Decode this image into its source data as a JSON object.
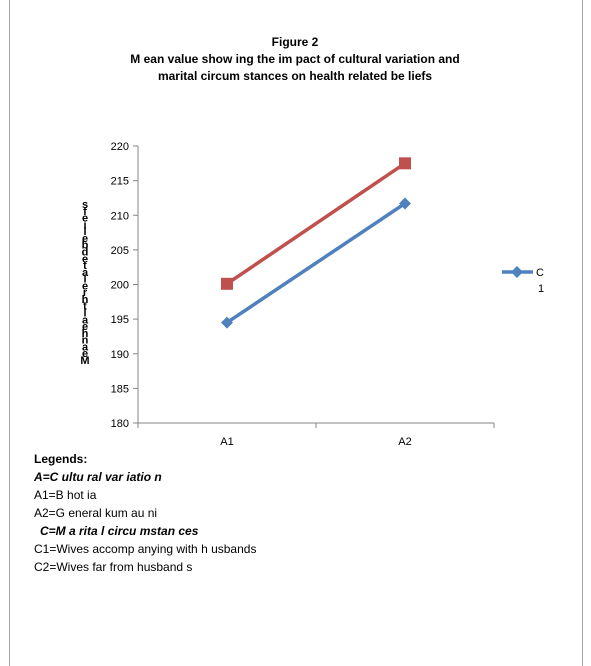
{
  "figure": {
    "label": "Figure 2",
    "title_line1": "M ean value show ing the im pact of  cultural variation and",
    "title_line2": "marital circum stances on  health related be liefs"
  },
  "chart_data": {
    "type": "line",
    "categories": [
      "A1",
      "A2"
    ],
    "series": [
      {
        "name": "C 1",
        "values": [
          194.5,
          211.7
        ],
        "color": "#4f81bd",
        "marker": "diamond"
      },
      {
        "name": "",
        "values": [
          200.1,
          217.5
        ],
        "color": "#c0504d",
        "marker": "square"
      }
    ],
    "ylim": [
      180,
      220
    ],
    "yticks": [
      180,
      185,
      190,
      195,
      200,
      205,
      210,
      215,
      220
    ],
    "ylabel_chars": [
      "s",
      "f",
      "e",
      "i",
      "l",
      "e",
      "b",
      "d",
      "e",
      "t",
      "a",
      "l",
      "e",
      "r",
      "h",
      "t",
      "l",
      "a",
      "e",
      "h",
      "n",
      "a",
      "e",
      "M"
    ],
    "legend_text_parts": [
      "C",
      "1"
    ],
    "legend_position": "right",
    "grid": false
  },
  "legends": {
    "heading": "Legends:",
    "a_title": "A=C ultu ral var iatio n",
    "a1": "A1=B hot ia",
    "a2": "A2=G eneral kum au ni",
    "c_title": "C=M a rita l circu mstan ces",
    "c1": "C1=Wives accomp anying with h usbands",
    "c2": "C2=Wives far from husband s"
  }
}
